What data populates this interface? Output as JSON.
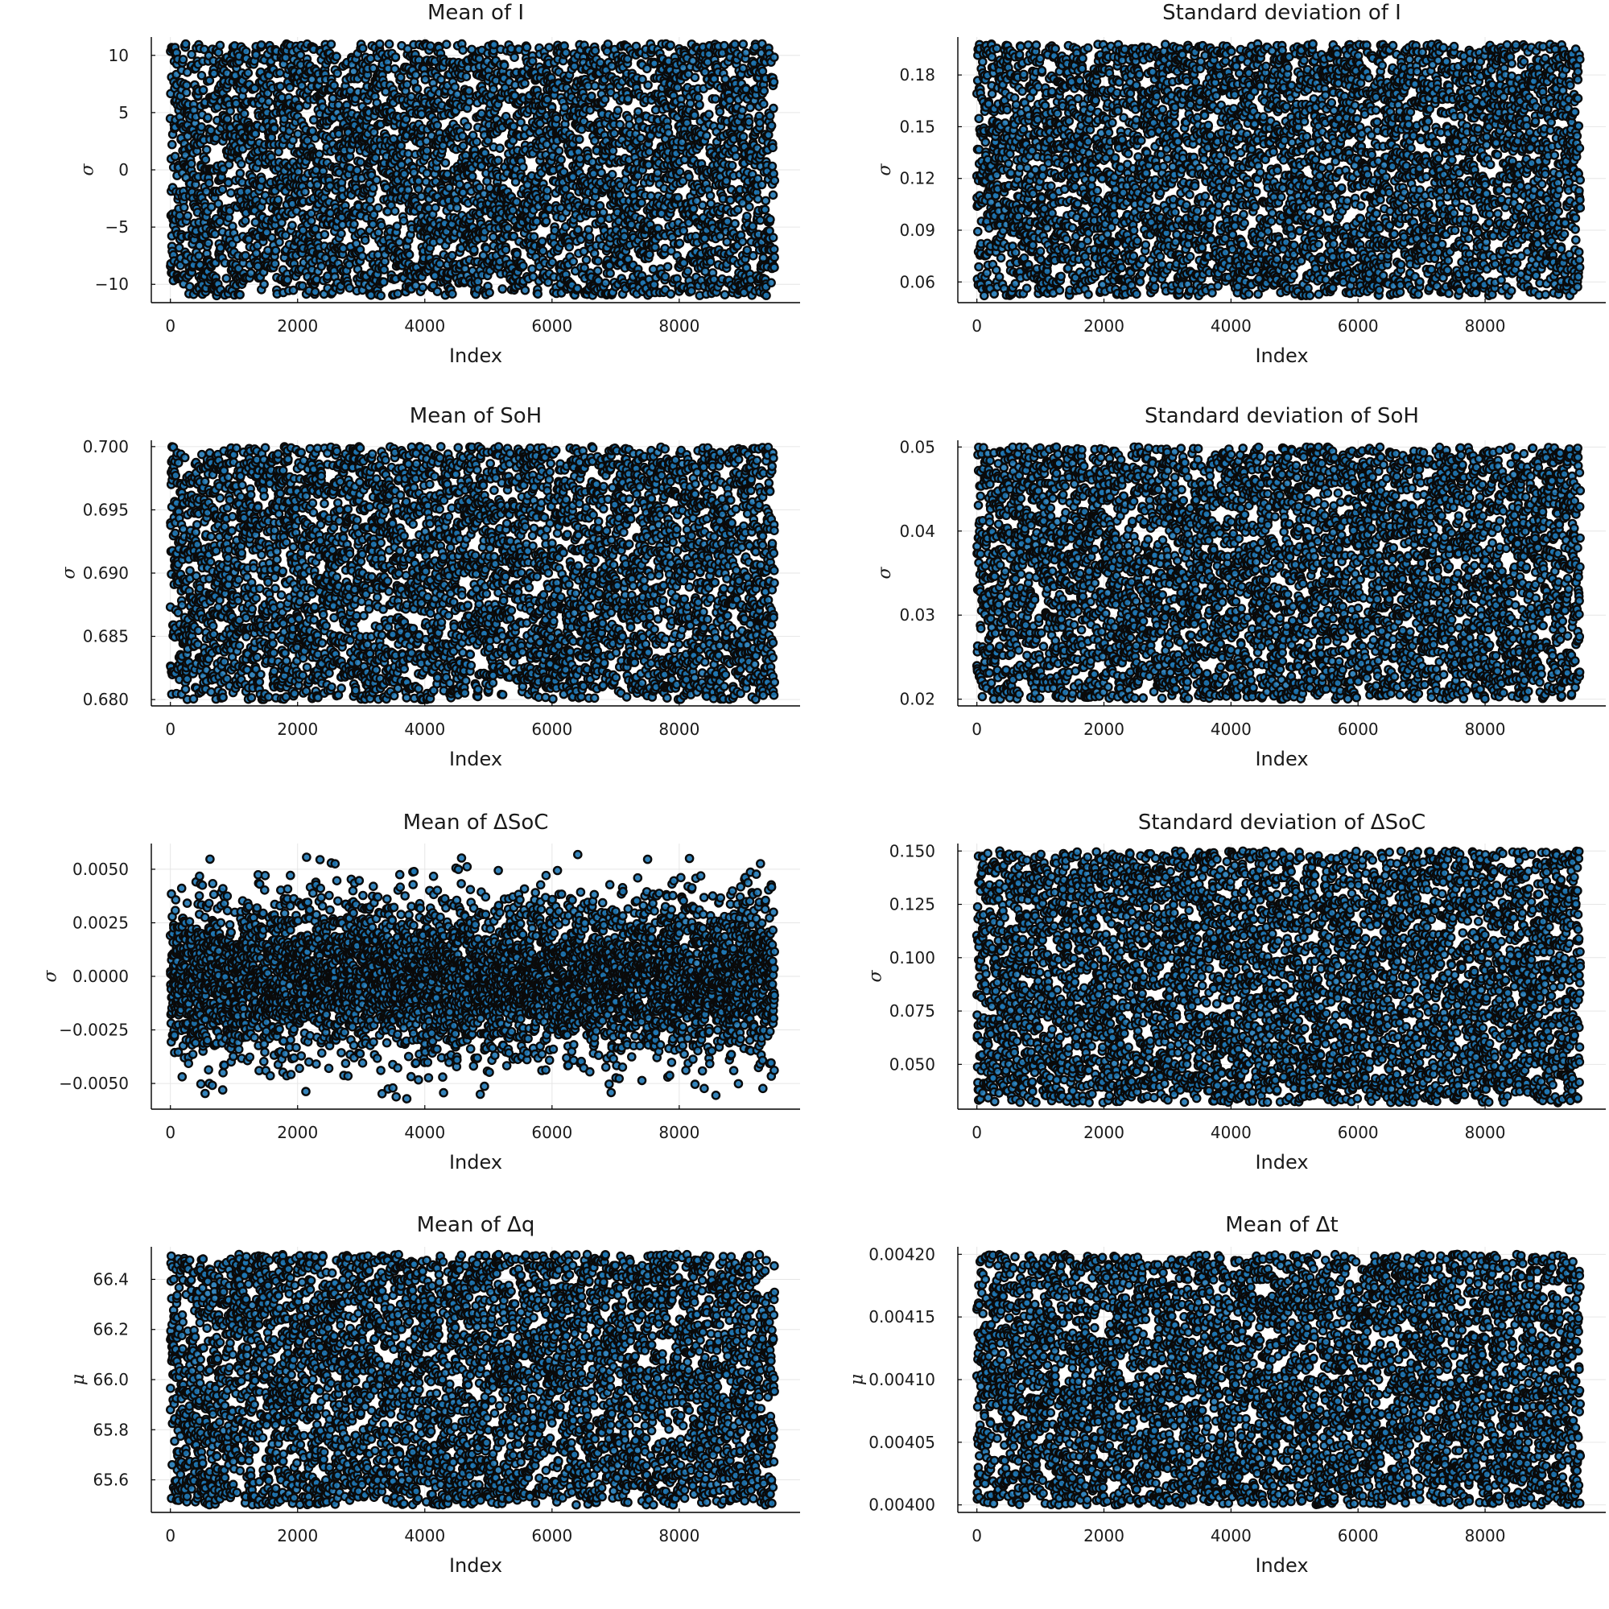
{
  "chart_data": [
    {
      "type": "scatter",
      "title": "Mean of I",
      "xlabel": "Index",
      "ylabel": "σ",
      "xlim": [
        -300,
        9900
      ],
      "ylim": [
        -11.6,
        11.6
      ],
      "xticks": [
        0,
        2000,
        4000,
        6000,
        8000
      ],
      "xtick_labels": [
        "0",
        "2000",
        "4000",
        "6000",
        "8000"
      ],
      "yticks": [
        -10,
        -5,
        0,
        5,
        10
      ],
      "ytick_labels": [
        "−10",
        "−5",
        "0",
        "5",
        "10"
      ],
      "n_points": 9500,
      "x_range": [
        0,
        9500
      ],
      "y_range": [
        -11,
        11
      ],
      "distribution": "uniform",
      "marker_fill": "#1f77b4",
      "marker_edge": "#0a0a0a",
      "grid": true,
      "legend": false
    },
    {
      "type": "scatter",
      "title": "Standard deviation of I",
      "xlabel": "Index",
      "ylabel": "σ",
      "xlim": [
        -300,
        9900
      ],
      "ylim": [
        0.048,
        0.202
      ],
      "xticks": [
        0,
        2000,
        4000,
        6000,
        8000
      ],
      "xtick_labels": [
        "0",
        "2000",
        "4000",
        "6000",
        "8000"
      ],
      "yticks": [
        0.06,
        0.09,
        0.12,
        0.15,
        0.18
      ],
      "ytick_labels": [
        "0.06",
        "0.09",
        "0.12",
        "0.15",
        "0.18"
      ],
      "n_points": 9500,
      "x_range": [
        0,
        9500
      ],
      "y_range": [
        0.052,
        0.198
      ],
      "distribution": "uniform",
      "marker_fill": "#1f77b4",
      "marker_edge": "#0a0a0a",
      "grid": true,
      "legend": false
    },
    {
      "type": "scatter",
      "title": "Mean of SoH",
      "xlabel": "Index",
      "ylabel": "σ",
      "xlim": [
        -300,
        9900
      ],
      "ylim": [
        0.6795,
        0.7005
      ],
      "xticks": [
        0,
        2000,
        4000,
        6000,
        8000
      ],
      "xtick_labels": [
        "0",
        "2000",
        "4000",
        "6000",
        "8000"
      ],
      "yticks": [
        0.68,
        0.685,
        0.69,
        0.695,
        0.7
      ],
      "ytick_labels": [
        "0.680",
        "0.685",
        "0.690",
        "0.695",
        "0.700"
      ],
      "n_points": 9500,
      "x_range": [
        0,
        9500
      ],
      "y_range": [
        0.68,
        0.7
      ],
      "distribution": "uniform",
      "marker_fill": "#1f77b4",
      "marker_edge": "#0a0a0a",
      "grid": true,
      "legend": false
    },
    {
      "type": "scatter",
      "title": "Standard deviation of SoH",
      "xlabel": "Index",
      "ylabel": "σ",
      "xlim": [
        -300,
        9900
      ],
      "ylim": [
        0.0192,
        0.0508
      ],
      "xticks": [
        0,
        2000,
        4000,
        6000,
        8000
      ],
      "xtick_labels": [
        "0",
        "2000",
        "4000",
        "6000",
        "8000"
      ],
      "yticks": [
        0.02,
        0.03,
        0.04,
        0.05
      ],
      "ytick_labels": [
        "0.02",
        "0.03",
        "0.04",
        "0.05"
      ],
      "n_points": 9500,
      "x_range": [
        0,
        9500
      ],
      "y_range": [
        0.02,
        0.05
      ],
      "distribution": "uniform",
      "marker_fill": "#1f77b4",
      "marker_edge": "#0a0a0a",
      "grid": true,
      "legend": false
    },
    {
      "type": "scatter",
      "title": "Mean of ΔSoC",
      "xlabel": "Index",
      "ylabel": "σ",
      "xlim": [
        -300,
        9900
      ],
      "ylim": [
        -0.0062,
        0.0062
      ],
      "xticks": [
        0,
        2000,
        4000,
        6000,
        8000
      ],
      "xtick_labels": [
        "0",
        "2000",
        "4000",
        "6000",
        "8000"
      ],
      "yticks": [
        -0.005,
        -0.0025,
        0,
        0.0025,
        0.005
      ],
      "ytick_labels": [
        "−0.0050",
        "−0.0025",
        "0.0000",
        "0.0025",
        "0.0050"
      ],
      "n_points": 9500,
      "x_range": [
        0,
        9500
      ],
      "y_range": [
        -0.0058,
        0.0058
      ],
      "distribution": "normal",
      "y_std": 0.0019,
      "marker_fill": "#1f77b4",
      "marker_edge": "#0a0a0a",
      "grid": true,
      "legend": false
    },
    {
      "type": "scatter",
      "title": "Standard deviation of ΔSoC",
      "xlabel": "Index",
      "ylabel": "σ",
      "xlim": [
        -300,
        9900
      ],
      "ylim": [
        0.029,
        0.1535
      ],
      "xticks": [
        0,
        2000,
        4000,
        6000,
        8000
      ],
      "xtick_labels": [
        "0",
        "2000",
        "4000",
        "6000",
        "8000"
      ],
      "yticks": [
        0.05,
        0.075,
        0.1,
        0.125,
        0.15
      ],
      "ytick_labels": [
        "0.050",
        "0.075",
        "0.100",
        "0.125",
        "0.150"
      ],
      "n_points": 9500,
      "x_range": [
        0,
        9500
      ],
      "y_range": [
        0.032,
        0.15
      ],
      "distribution": "uniform",
      "marker_fill": "#1f77b4",
      "marker_edge": "#0a0a0a",
      "grid": true,
      "legend": false
    },
    {
      "type": "scatter",
      "title": "Mean of Δq",
      "xlabel": "Index",
      "ylabel": "μ",
      "xlim": [
        -300,
        9900
      ],
      "ylim": [
        65.47,
        66.53
      ],
      "xticks": [
        0,
        2000,
        4000,
        6000,
        8000
      ],
      "xtick_labels": [
        "0",
        "2000",
        "4000",
        "6000",
        "8000"
      ],
      "yticks": [
        65.6,
        65.8,
        66.0,
        66.2,
        66.4
      ],
      "ytick_labels": [
        "65.6",
        "65.8",
        "66.0",
        "66.2",
        "66.4"
      ],
      "n_points": 9500,
      "x_range": [
        0,
        9500
      ],
      "y_range": [
        65.5,
        66.5
      ],
      "distribution": "uniform",
      "marker_fill": "#1f77b4",
      "marker_edge": "#0a0a0a",
      "grid": true,
      "legend": false
    },
    {
      "type": "scatter",
      "title": "Mean of Δt",
      "xlabel": "Index",
      "ylabel": "μ",
      "xlim": [
        -300,
        9900
      ],
      "ylim": [
        0.003994,
        0.004206
      ],
      "xticks": [
        0,
        2000,
        4000,
        6000,
        8000
      ],
      "xtick_labels": [
        "0",
        "2000",
        "4000",
        "6000",
        "8000"
      ],
      "yticks": [
        0.004,
        0.00405,
        0.0041,
        0.00415,
        0.0042
      ],
      "ytick_labels": [
        "0.00400",
        "0.00405",
        "0.00410",
        "0.00415",
        "0.00420"
      ],
      "n_points": 9500,
      "x_range": [
        0,
        9500
      ],
      "y_range": [
        0.004,
        0.0042
      ],
      "distribution": "uniform",
      "marker_fill": "#1f77b4",
      "marker_edge": "#0a0a0a",
      "grid": true,
      "legend": false
    }
  ]
}
